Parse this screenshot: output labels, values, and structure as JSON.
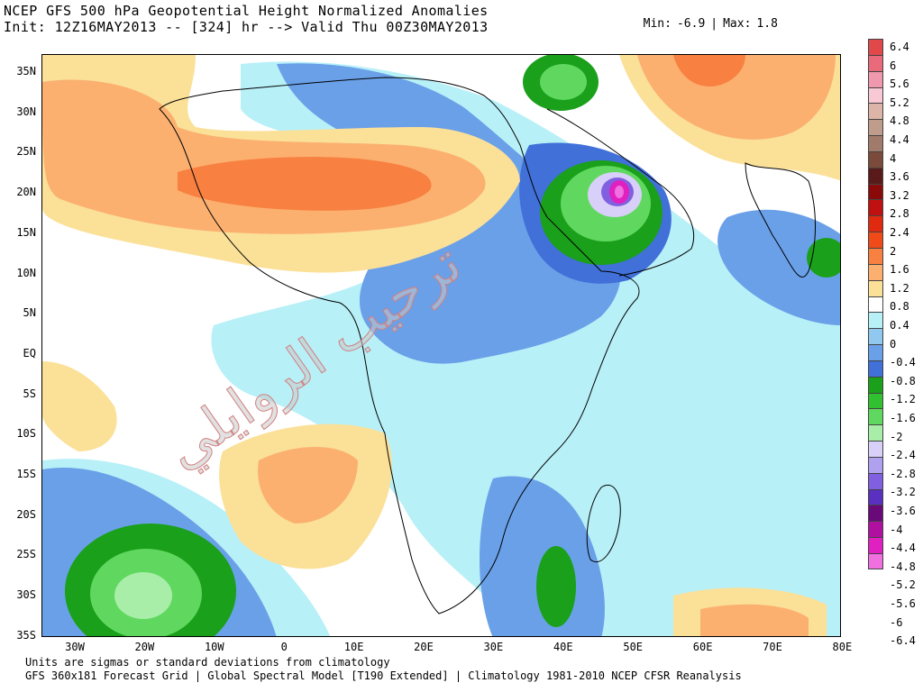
{
  "header": {
    "title_line1": "NCEP GFS 500 hPa Geopotential Height Normalized Anomalies",
    "title_line2": "Init: 12Z16MAY2013 -- [324] hr --> Valid Thu 00Z30MAY2013",
    "min_label": "Min:",
    "min_value": "-6.9",
    "separator": "|",
    "max_label": "Max:",
    "max_value": "1.8"
  },
  "map": {
    "lat_labels": [
      "35N",
      "30N",
      "25N",
      "20N",
      "15N",
      "10N",
      "5N",
      "EQ",
      "5S",
      "10S",
      "15S",
      "20S",
      "25S",
      "30S",
      "35S"
    ],
    "lon_labels": [
      "30W",
      "20W",
      "10W",
      "0",
      "10E",
      "20E",
      "30E",
      "40E",
      "50E",
      "60E",
      "70E",
      "80E"
    ],
    "watermark_text": "ترحيب الروايلي"
  },
  "footer": {
    "line1": "Units are sigmas or standard deviations from climatology",
    "line2": "GFS 360x181 Forecast Grid | Global Spectral Model [T190 Extended] | Climatology 1981-2010 NCEP CFSR Reanalysis"
  },
  "colorbar": {
    "labels": [
      "6.4",
      "6",
      "5.6",
      "5.2",
      "4.8",
      "4.4",
      "4",
      "3.6",
      "3.2",
      "2.8",
      "2.4",
      "2",
      "1.6",
      "1.2",
      "0.8",
      "0.4",
      "0",
      "-0.4",
      "-0.8",
      "-1.2",
      "-1.6",
      "-2",
      "-2.4",
      "-2.8",
      "-3.2",
      "-3.6",
      "-4",
      "-4.4",
      "-4.8",
      "-5.2",
      "-5.6",
      "-6",
      "-6.4"
    ],
    "colors": [
      "#e0484a",
      "#e96a7a",
      "#f098ad",
      "#f8c8d4",
      "#dcb4a8",
      "#c09c8c",
      "#a07a6a",
      "#7a4a3a",
      "#5a1a1a",
      "#8a0a0a",
      "#c01010",
      "#e02a10",
      "#f04a18",
      "#f88040",
      "#fbb070",
      "#fbe098",
      "#ffffff",
      "#b8f0f8",
      "#90c8f0",
      "#6aa0e8",
      "#4070d8",
      "#1aa01a",
      "#30c030",
      "#60d860",
      "#a8eea8",
      "#d8d0f8",
      "#b0a0f0",
      "#8060e0",
      "#5a30c0",
      "#6a0a7a",
      "#b010a0",
      "#e020c0",
      "#f070e0"
    ]
  }
}
